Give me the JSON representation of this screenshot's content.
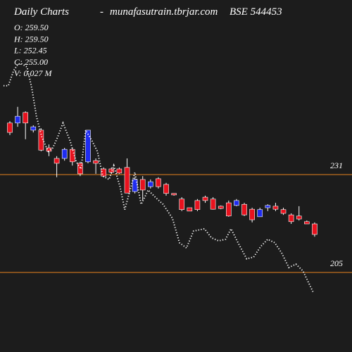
{
  "chart_data": {
    "type": "candlestick",
    "title": "Daily Charts",
    "separator": "-",
    "source": "munafasutrain.tbrjar.com",
    "symbol": "BSE 544453",
    "ohlc_labels": [
      "O: 259.50",
      "H: 259.50",
      "L: 252.45",
      "C: 255.00",
      "V: 0.027 M"
    ],
    "x": [
      0,
      1,
      2,
      3,
      4,
      5,
      6,
      7,
      8,
      9,
      10,
      11,
      12,
      13,
      14,
      15,
      16,
      17,
      18,
      19,
      20,
      21,
      22,
      23,
      24,
      25,
      26,
      27,
      28,
      29,
      30,
      31,
      32,
      33,
      34,
      35,
      36,
      37,
      38,
      39
    ],
    "open": [
      244.7,
      244.7,
      247.5,
      242.8,
      242.8,
      238.1,
      235.3,
      235.3,
      237.7,
      234.0,
      234.4,
      234.7,
      232.5,
      232.5,
      232.5,
      232.9,
      226.5,
      229.7,
      227.8,
      229.9,
      228.4,
      226.0,
      224.5,
      222.2,
      224.1,
      225.0,
      224.5,
      222.6,
      223.5,
      222.8,
      223.1,
      221.8,
      219.8,
      222.2,
      222.6,
      221.7,
      220.3,
      220.0,
      218.5,
      217.9
    ],
    "high": [
      245.2,
      249.0,
      247.8,
      244.1,
      243.3,
      239.0,
      235.9,
      238.1,
      238.1,
      234.4,
      242.8,
      235.3,
      232.9,
      232.9,
      232.9,
      235.3,
      230.3,
      230.6,
      229.7,
      230.3,
      228.8,
      226.0,
      225.0,
      222.2,
      224.5,
      225.4,
      225.0,
      222.8,
      224.1,
      224.5,
      223.5,
      222.2,
      222.2,
      223.1,
      223.5,
      222.2,
      220.7,
      222.6,
      218.8,
      218.3
    ],
    "low": [
      241.5,
      243.7,
      240.4,
      242.2,
      237.2,
      235.9,
      230.3,
      234.7,
      233.4,
      230.6,
      234.0,
      231.2,
      230.3,
      231.2,
      231.2,
      226.0,
      226.0,
      224.1,
      227.3,
      227.3,
      225.4,
      225.4,
      221.3,
      221.3,
      221.3,
      223.5,
      221.7,
      221.8,
      219.8,
      222.6,
      220.0,
      218.3,
      219.8,
      221.3,
      221.3,
      220.3,
      217.9,
      218.8,
      217.9,
      214.5
    ],
    "close": [
      242.2,
      246.5,
      244.7,
      243.7,
      237.5,
      237.2,
      234.0,
      237.7,
      234.4,
      231.2,
      242.8,
      234.0,
      230.6,
      231.6,
      231.4,
      226.1,
      229.7,
      226.9,
      229.1,
      227.8,
      226.0,
      225.6,
      221.7,
      221.3,
      221.7,
      224.1,
      221.8,
      222.0,
      220.0,
      224.1,
      220.3,
      219.0,
      221.7,
      222.8,
      221.8,
      220.7,
      218.5,
      219.2,
      217.9,
      215.1
    ],
    "up_color": "#1f2cf0",
    "down_color": "#e8121e",
    "overlay": {
      "color": "#ffffff",
      "x": [
        -0.8,
        -0.2,
        0.5,
        1.0,
        1.4,
        2.2,
        2.8,
        3.4,
        4.1,
        4.9,
        5.5,
        6.1,
        6.8,
        7.7,
        8.5,
        9.1,
        9.7,
        10.5,
        11.2,
        11.9,
        12.7,
        13.3,
        14.1,
        14.7,
        15.4,
        16.0,
        16.8,
        17.7,
        18.6,
        19.6,
        20.8,
        21.7,
        22.6,
        23.5,
        24.9,
        25.8,
        26.7,
        27.6,
        28.3,
        29.2,
        30.3,
        31.2,
        32.1,
        33.0,
        33.9,
        34.8,
        35.7,
        36.6,
        37.5,
        38.8
      ],
      "values": [
        254.6,
        254.6,
        258.7,
        260.2,
        260.6,
        259.6,
        254.0,
        246.5,
        240.9,
        237.2,
        238.1,
        240.9,
        244.7,
        240.0,
        234.4,
        232.5,
        242.8,
        240.0,
        237.2,
        230.6,
        229.7,
        233.4,
        227.8,
        221.7,
        226.9,
        231.6,
        223.1,
        226.9,
        225.0,
        223.1,
        219.4,
        212.9,
        211.5,
        216.0,
        216.6,
        214.2,
        213.4,
        213.8,
        216.6,
        212.9,
        208.6,
        209.1,
        211.9,
        213.8,
        212.9,
        210.1,
        206.3,
        207.2,
        205.4,
        199.8
      ]
    },
    "xlim": [
      -1.26,
      43.78
    ],
    "ylim": [
      183.86,
      277.39
    ],
    "yticks": [
      205,
      231
    ],
    "level_color": "#e8821e"
  }
}
